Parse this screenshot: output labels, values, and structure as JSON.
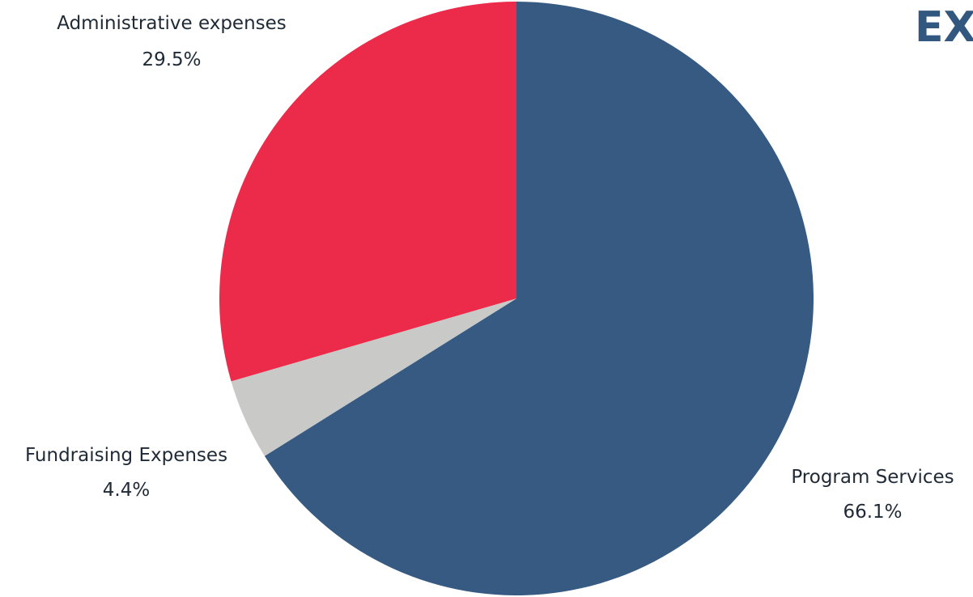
{
  "heading": "EX",
  "chart_data": {
    "type": "pie",
    "slices": [
      {
        "name": "Program Services",
        "value": 66.1,
        "label": "66.1%",
        "color": "#365a82"
      },
      {
        "name": "Fundraising Expenses",
        "value": 4.4,
        "label": "4.4%",
        "color": "#c9c9c8"
      },
      {
        "name": "Administrative expenses",
        "value": 29.5,
        "label": "29.5%",
        "color": "#ec2b4b"
      }
    ],
    "start": "12 o'clock",
    "direction": "clockwise",
    "legend": "none",
    "data_labels": "outside"
  }
}
